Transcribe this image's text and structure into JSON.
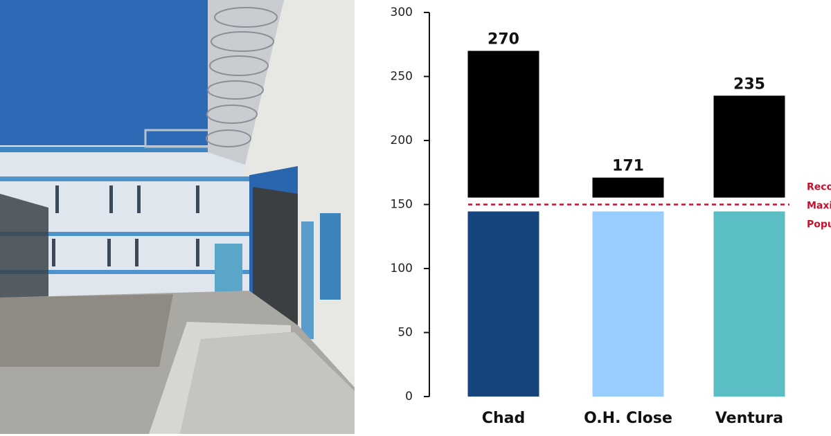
{
  "chart_data": {
    "type": "bar",
    "categories": [
      "Chad",
      "O.H. Close",
      "Ventura"
    ],
    "values": [
      270,
      171,
      235
    ],
    "colors": [
      "#15457c",
      "#99ccff",
      "#5bbec4"
    ],
    "excess_color": "#000000",
    "ylim": [
      0,
      300
    ],
    "yticks": [
      0,
      50,
      100,
      150,
      200,
      250,
      300
    ],
    "reference_line": {
      "value": 150,
      "color": "#c8102e",
      "label": [
        "Recommended",
        "Maximum",
        "Population"
      ]
    }
  }
}
